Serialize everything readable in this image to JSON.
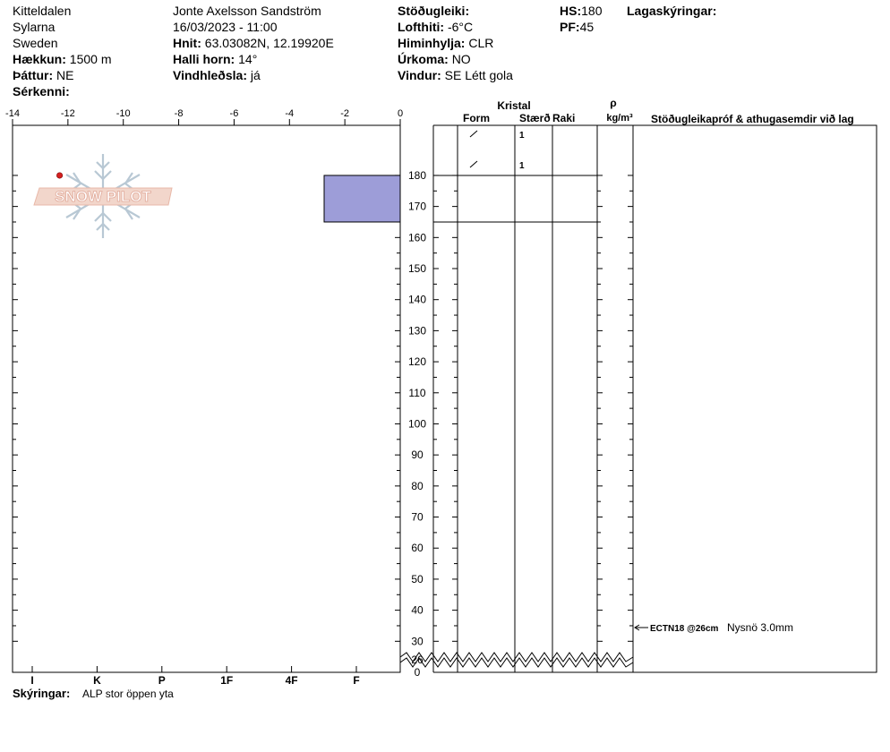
{
  "header": {
    "location": "Kitteldalen",
    "region": "Sylarna",
    "country": "Sweden",
    "elevation_label": "Hækkun:",
    "elevation_value": "1500 m",
    "aspect_label": "Þáttur:",
    "aspect_value": "NE",
    "features_label": "Sérkenni:",
    "observer": "Jonte Axelsson Sandström",
    "datetime": "16/03/2023 - 11:00",
    "coords_label": "Hnit:",
    "coords_value": "63.03082N, 12.19920E",
    "slope_label": "Halli horn:",
    "slope_value": "14°",
    "wind_loading_label": "Vindhleðsla:",
    "wind_loading_value": "já",
    "stability_label": "Stöðugleiki:",
    "air_temp_label": "Lofthiti:",
    "air_temp_value": "-6°C",
    "sky_label": "Himinhylja:",
    "sky_value": "CLR",
    "precip_label": "Úrkoma:",
    "precip_value": "NO",
    "wind_label": "Vindur:",
    "wind_value": "SE Létt gola",
    "hs_label": "HS:",
    "hs_value": "180",
    "pf_label": "PF:",
    "pf_value": "45",
    "layer_notes_label": "Lagaskýringar:"
  },
  "footer": {
    "notes_label": "Skýringar:",
    "notes_value": "ALP stor öppen yta"
  },
  "watermark": "SNOW PILOT",
  "colors": {
    "hardness_fill": "#9d9dd8",
    "temp_point": "#d42020",
    "watermark_text": "#e8b8a8",
    "watermark_flake": "#b8c8d4"
  },
  "chart_data": {
    "type": "snow-profile",
    "temperature_axis": {
      "range": [
        -14,
        0
      ],
      "ticks": [
        "-14",
        "-12",
        "-10",
        "-8",
        "-6",
        "-4",
        "-2",
        "0"
      ]
    },
    "height_axis": {
      "unit": "cm",
      "ticks": [
        "180",
        "170",
        "160",
        "150",
        "140",
        "130",
        "120",
        "110",
        "100",
        "90",
        "80",
        "70",
        "60",
        "50",
        "40",
        "30",
        "26",
        "0"
      ]
    },
    "hardness_axis": {
      "ticks": [
        "I",
        "K",
        "P",
        "1F",
        "4F",
        "F"
      ]
    },
    "temperature_profile": [
      {
        "temp_c": -12.3,
        "height_cm": 180
      }
    ],
    "layers": [
      {
        "top_cm": 180,
        "bottom_cm": 165,
        "hardness": "F",
        "hardness_value": 5.3
      }
    ],
    "crystal_rows": [
      {
        "form_glyph": "/",
        "size": "1"
      },
      {
        "form_glyph": "/",
        "size": "1"
      }
    ],
    "columns": {
      "crystal_group": "Kristal",
      "form": "Form",
      "size": "Stærð",
      "wetness": "Raki",
      "density_symbol": "ρ",
      "density_unit": "kg/m³",
      "tests": "Stöðugleikapróf & athugasemdir við lag"
    },
    "tests": [
      {
        "height_cm": 26,
        "code": "ECTN18 @26cm",
        "comment": "Nysnö 3.0mm"
      }
    ]
  }
}
